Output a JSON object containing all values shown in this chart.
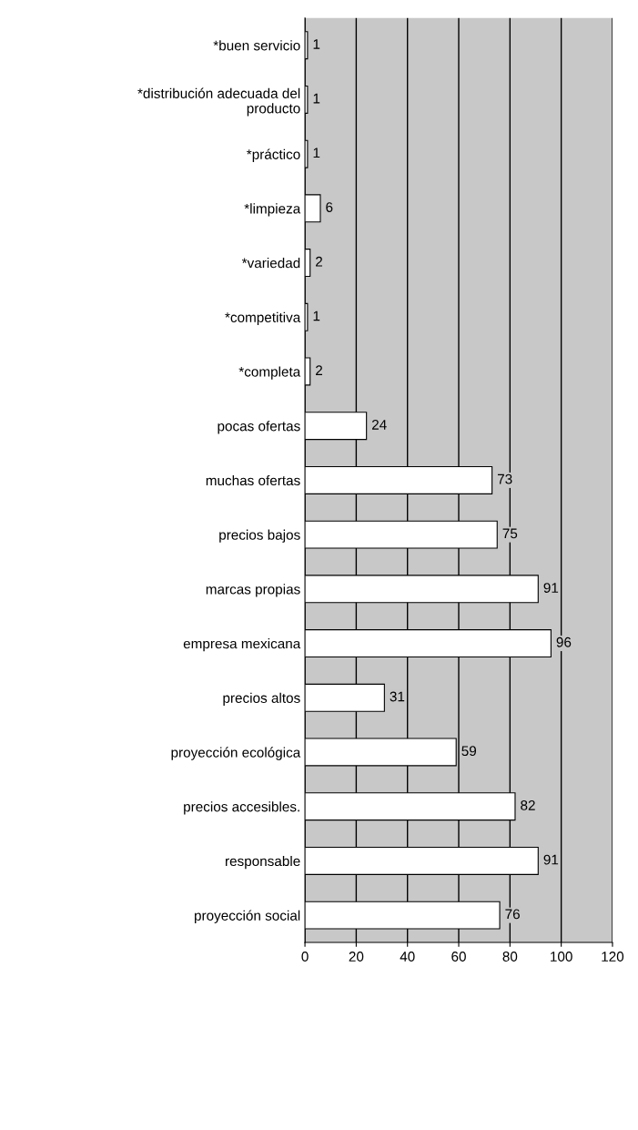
{
  "chart_data": {
    "type": "bar",
    "orientation": "horizontal",
    "categories": [
      "*buen servicio",
      "*distribución adecuada del\nproducto",
      "*práctico",
      "*limpieza",
      "*variedad",
      "*competitiva",
      "*completa",
      "pocas ofertas",
      "muchas ofertas",
      "precios bajos",
      "marcas propias",
      "empresa mexicana",
      "precios altos",
      "proyección ecológica",
      "precios accesibles.",
      "responsable",
      "proyección social"
    ],
    "values": [
      1,
      1,
      1,
      6,
      2,
      1,
      2,
      24,
      73,
      75,
      91,
      96,
      31,
      59,
      82,
      91,
      76
    ],
    "color": "#ffffff",
    "xlim": [
      0,
      120
    ],
    "xticks": [
      0,
      20,
      40,
      60,
      80,
      100,
      120
    ],
    "grid": "x",
    "data_labels": true
  }
}
